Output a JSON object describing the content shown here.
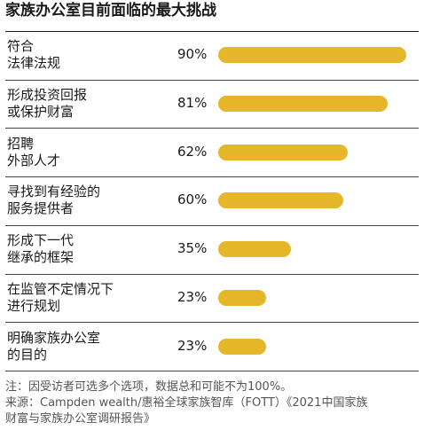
{
  "chart_data": {
    "type": "bar",
    "orientation": "horizontal",
    "title": "家族办公室目前面临的最大挑战",
    "bar_color": "#E5B52A",
    "xlim": [
      0,
      90
    ],
    "categories": [
      {
        "lines": [
          "符合",
          "法律法规"
        ],
        "value": 90,
        "value_label": "90%"
      },
      {
        "lines": [
          "形成投资回报",
          "或保护财富"
        ],
        "value": 81,
        "value_label": "81%"
      },
      {
        "lines": [
          "招聘",
          "外部人才"
        ],
        "value": 62,
        "value_label": "62%"
      },
      {
        "lines": [
          "寻找到有经验的",
          "服务提供者"
        ],
        "value": 60,
        "value_label": "60%"
      },
      {
        "lines": [
          "形成下一代",
          "继承的框架"
        ],
        "value": 35,
        "value_label": "35%"
      },
      {
        "lines": [
          "在监管不定情况下",
          "进行规划"
        ],
        "value": 23,
        "value_label": "23%"
      },
      {
        "lines": [
          "明确家族办公室",
          "的目的"
        ],
        "value": 23,
        "value_label": "23%"
      }
    ],
    "notes": [
      "注：因受访者可选多个选项，数据总和可能不为100%。",
      "来源：Campden wealth/惠裕全球家族智库（FOTT）《2021中国家族",
      "财富与家族办公室调研报告》"
    ]
  }
}
